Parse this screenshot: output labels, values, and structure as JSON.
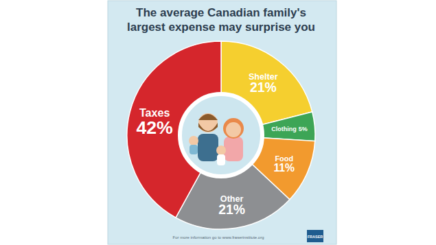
{
  "chart_data": {
    "type": "pie",
    "title": "The average Canadian family's largest expense may surprise you",
    "categories": [
      "Shelter",
      "Clothing",
      "Food",
      "Other",
      "Taxes"
    ],
    "values": [
      21,
      5,
      11,
      21,
      42
    ],
    "value_labels": [
      "21%",
      "5%",
      "11%",
      "21%",
      "42%"
    ],
    "colors": [
      "#f5cf2f",
      "#3da556",
      "#f29a2e",
      "#8d8f92",
      "#d5262c"
    ],
    "data_labels": true,
    "annotations": [
      "For more information go to www.fraserinstitute.org",
      "FRASER"
    ]
  }
}
